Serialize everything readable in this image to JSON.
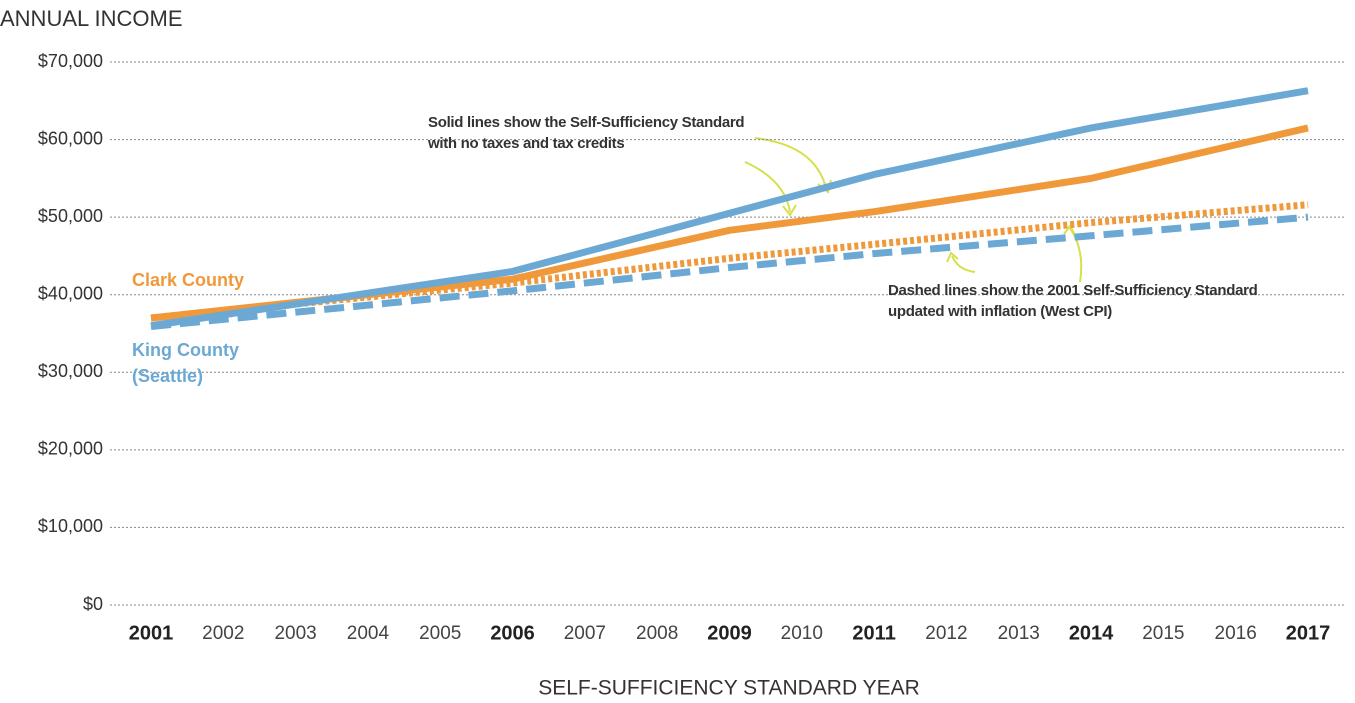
{
  "chart_data": {
    "type": "line",
    "y_axis_label": "ANNUAL INCOME",
    "x_axis_label": "SELF-SUFFICIENCY STANDARD YEAR",
    "x": [
      2001,
      2006,
      2009,
      2011,
      2014,
      2017
    ],
    "xlim": [
      2001,
      2017
    ],
    "xticks": [
      2001,
      2002,
      2003,
      2004,
      2005,
      2006,
      2007,
      2008,
      2009,
      2010,
      2011,
      2012,
      2013,
      2014,
      2015,
      2016,
      2017
    ],
    "ylim": [
      0,
      70000
    ],
    "yticks": [
      {
        "value": 0,
        "label": "$0"
      },
      {
        "value": 10000,
        "label": "$10,000"
      },
      {
        "value": 20000,
        "label": "$20,000"
      },
      {
        "value": 30000,
        "label": "$30,000"
      },
      {
        "value": 40000,
        "label": "$40,000"
      },
      {
        "value": 50000,
        "label": "$50,000"
      },
      {
        "value": 60000,
        "label": "$60,000"
      },
      {
        "value": 70000,
        "label": "$70,000"
      }
    ],
    "grid": true,
    "series": [
      {
        "name": "Clark County",
        "color": "#f0993b",
        "values": [
          37000,
          42000,
          48300,
          50700,
          55000,
          61500
        ],
        "inflation_values": [
          37000,
          41500,
          44700,
          46500,
          49300,
          51600
        ]
      },
      {
        "name": "King County (Seattle)",
        "color": "#6ba9d4",
        "values": [
          36000,
          43000,
          50500,
          55500,
          61500,
          66300
        ],
        "inflation_values": [
          35900,
          40500,
          43500,
          45300,
          47600,
          50000
        ]
      }
    ],
    "annotations": [
      "Solid lines show the Self-Sufficiency Standard with no taxes and tax credits",
      "Dashed lines show the 2001 Self-Sufficiency Standard updated with inflation (West CPI)"
    ]
  }
}
